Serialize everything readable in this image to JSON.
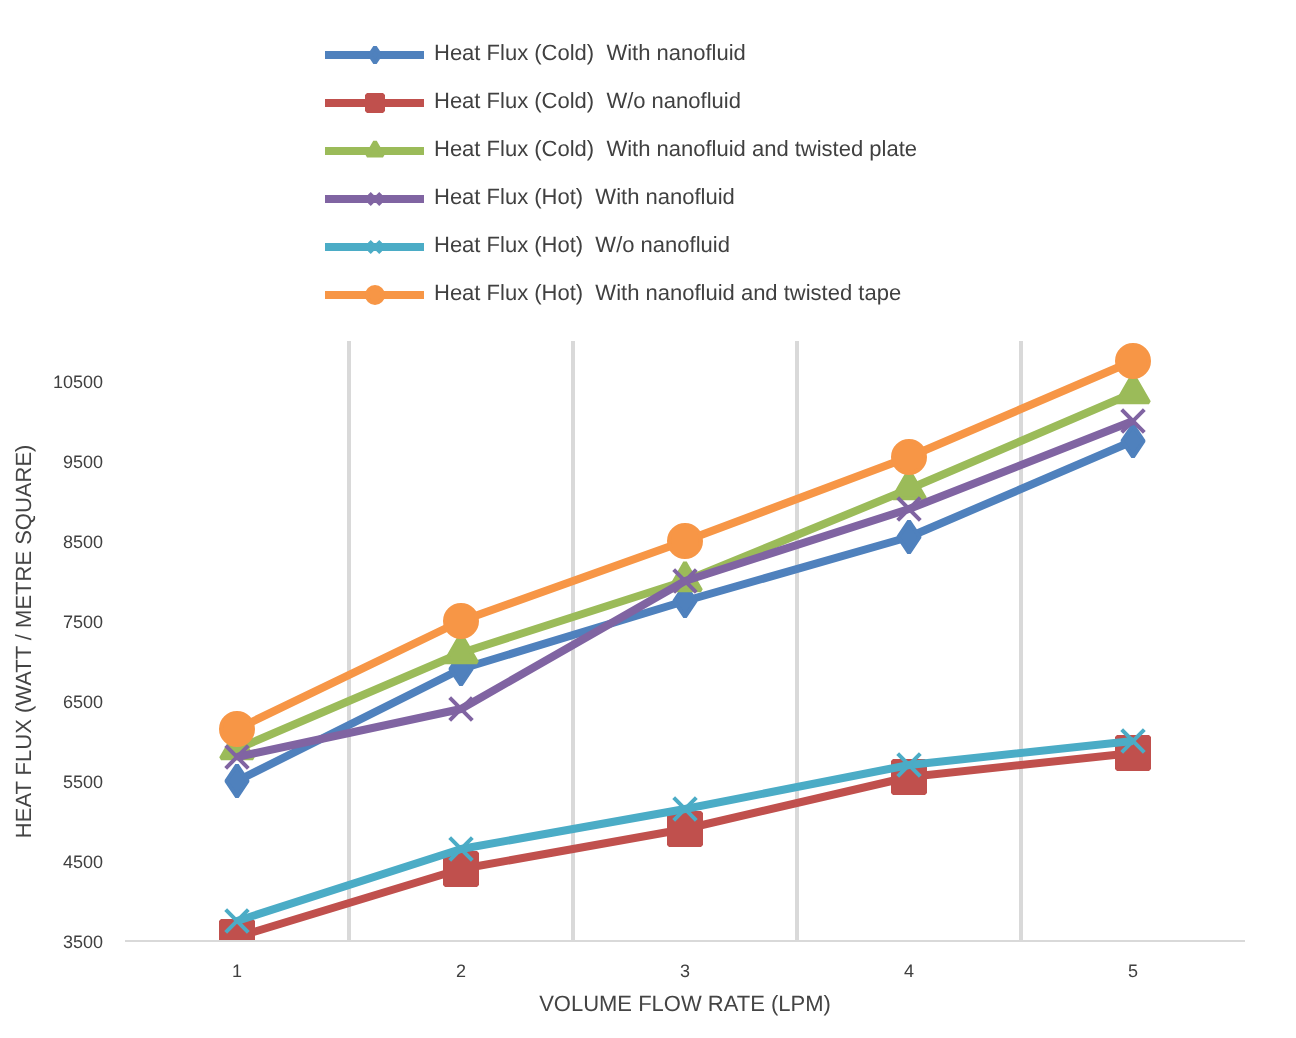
{
  "chart_data": {
    "type": "line",
    "xlabel": "VOLUME FLOW RATE (LPM)",
    "ylabel": "HEAT FLUX (WATT / METRE SQUARE)",
    "categories": [
      "1",
      "2",
      "3",
      "4",
      "5"
    ],
    "ylim": [
      3500,
      11000
    ],
    "yticks": [
      3500,
      4500,
      5500,
      6500,
      7500,
      8500,
      9500,
      10500
    ],
    "grid": "x",
    "legend": "top",
    "series": [
      {
        "name": "Heat Flux (Cold)  With nanofluid",
        "color": "#4f81bd",
        "marker": "diamond",
        "values": [
          5500,
          6900,
          7750,
          8550,
          9750
        ]
      },
      {
        "name": "Heat Flux (Cold)  W/o nanofluid",
        "color": "#c0504d",
        "marker": "square",
        "values": [
          3550,
          4400,
          4900,
          5550,
          5850
        ]
      },
      {
        "name": "Heat Flux (Cold)  With nanofluid and twisted plate",
        "color": "#9bbb59",
        "marker": "triangle",
        "values": [
          5900,
          7100,
          8000,
          9150,
          10350
        ]
      },
      {
        "name": "Heat Flux (Hot)  With nanofluid",
        "color": "#8064a2",
        "marker": "cross",
        "values": [
          5800,
          6400,
          8000,
          8900,
          10000
        ]
      },
      {
        "name": "Heat Flux (Hot)  W/o nanofluid",
        "color": "#4bacc6",
        "marker": "cross",
        "values": [
          3750,
          4650,
          5150,
          5700,
          6000
        ]
      },
      {
        "name": "Heat Flux (Hot)  With nanofluid and twisted tape",
        "color": "#f79646",
        "marker": "circle",
        "values": [
          6150,
          7500,
          8500,
          9550,
          10750
        ]
      }
    ]
  }
}
